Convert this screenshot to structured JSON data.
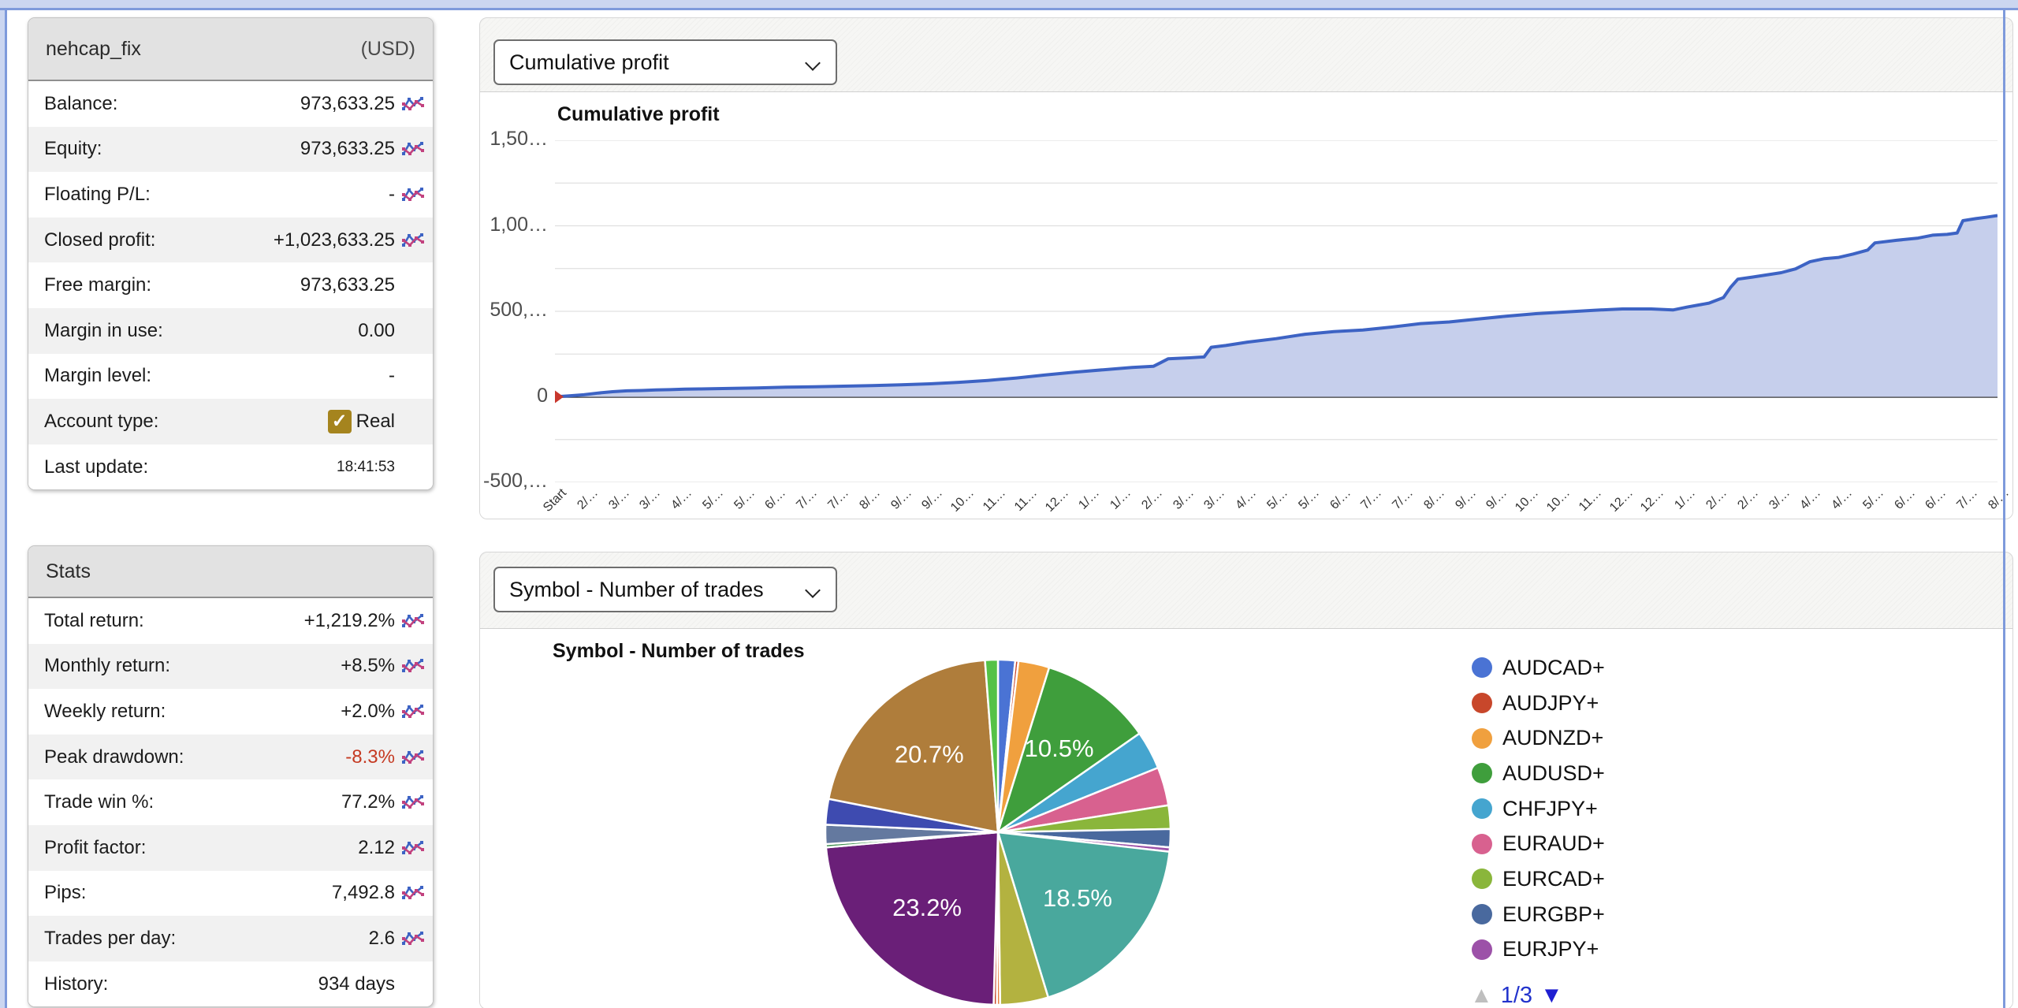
{
  "account_panel": {
    "title": "nehcap_fix",
    "currency": "(USD)",
    "rows": [
      {
        "label": "Balance:",
        "value": "973,633.25",
        "icon": true
      },
      {
        "label": "Equity:",
        "value": "973,633.25",
        "icon": true
      },
      {
        "label": "Floating P/L:",
        "value": "-",
        "icon": true
      },
      {
        "label": "Closed profit:",
        "value": "+1,023,633.25",
        "icon": true
      },
      {
        "label": "Free margin:",
        "value": "973,633.25",
        "icon": false
      },
      {
        "label": "Margin in use:",
        "value": "0.00",
        "icon": false
      },
      {
        "label": "Margin level:",
        "value": "-",
        "icon": false
      },
      {
        "label": "Account type:",
        "value": "Real",
        "icon": false,
        "checkbox": true
      },
      {
        "label": "Last update:",
        "value": "18:41:53",
        "icon": false,
        "small": true
      }
    ]
  },
  "stats_panel": {
    "title": "Stats",
    "rows": [
      {
        "label": "Total return:",
        "value": "+1,219.2%",
        "icon": true
      },
      {
        "label": "Monthly return:",
        "value": "+8.5%",
        "icon": true
      },
      {
        "label": "Weekly return:",
        "value": "+2.0%",
        "icon": true
      },
      {
        "label": "Peak drawdown:",
        "value": "-8.3%",
        "icon": true,
        "negative": true
      },
      {
        "label": "Trade win %:",
        "value": "77.2%",
        "icon": true
      },
      {
        "label": "Profit factor:",
        "value": "2.12",
        "icon": true
      },
      {
        "label": "Pips:",
        "value": "7,492.8",
        "icon": true
      },
      {
        "label": "Trades per day:",
        "value": "2.6",
        "icon": true
      },
      {
        "label": "History:",
        "value": "934 days",
        "icon": false
      }
    ]
  },
  "profit_chart": {
    "dropdown_value": "Cumulative profit",
    "title": "Cumulative profit"
  },
  "pie_chart": {
    "dropdown_value": "Symbol - Number of trades",
    "title": "Symbol - Number of trades",
    "legend_page": "1/3"
  },
  "colors": {
    "line": "#3d63c4",
    "line_fill": "#c6cfec",
    "start_marker": "#c8372d",
    "grid": "#e0e0e0",
    "axis": "#3a3a3a",
    "negative_text": "#c53a22",
    "checkbox_gold": "#a5841e",
    "pager_next_blue": "#1f1fd1",
    "pager_prev_gray": "#bfbfbf"
  },
  "chart_data": [
    {
      "type": "area",
      "title": "Cumulative profit",
      "ylabel": "",
      "xlabel": "",
      "ylim": [
        -500000,
        1500000
      ],
      "grid_step": 250000,
      "y_ticks": [
        {
          "text": "1,50…",
          "value": 1500000
        },
        {
          "text": "1,00…",
          "value": 1000000
        },
        {
          "text": "500,…",
          "value": 500000
        },
        {
          "text": "0",
          "value": 0
        },
        {
          "text": "-500,…",
          "value": -500000
        }
      ],
      "x_tick_labels": [
        "Start",
        "2/…",
        "3/…",
        "3/…",
        "4/…",
        "5/…",
        "5/…",
        "6/…",
        "7/…",
        "7/…",
        "8/…",
        "9/…",
        "9/…",
        "10…",
        "11…",
        "11…",
        "12…",
        "1/…",
        "1/…",
        "2/…",
        "3/…",
        "3/…",
        "4/…",
        "5/…",
        "5/…",
        "6/…",
        "7/…",
        "7/…",
        "8/…",
        "9/…",
        "9/…",
        "10…",
        "10…",
        "11…",
        "12…",
        "12…",
        "1/…",
        "2/…",
        "2/…",
        "3/…",
        "4/…",
        "4/…",
        "5/…",
        "6/…",
        "6/…",
        "7/…",
        "8/…"
      ],
      "points": [
        [
          0,
          0
        ],
        [
          0.01,
          6000
        ],
        [
          0.02,
          12000
        ],
        [
          0.03,
          22000
        ],
        [
          0.04,
          30000
        ],
        [
          0.05,
          35000
        ],
        [
          0.06,
          37000
        ],
        [
          0.07,
          40000
        ],
        [
          0.08,
          42000
        ],
        [
          0.09,
          45000
        ],
        [
          0.1,
          46000
        ],
        [
          0.12,
          49000
        ],
        [
          0.14,
          52000
        ],
        [
          0.16,
          56000
        ],
        [
          0.18,
          59000
        ],
        [
          0.2,
          62000
        ],
        [
          0.22,
          66000
        ],
        [
          0.24,
          70000
        ],
        [
          0.26,
          76000
        ],
        [
          0.28,
          85000
        ],
        [
          0.3,
          96000
        ],
        [
          0.32,
          110000
        ],
        [
          0.34,
          128000
        ],
        [
          0.36,
          144000
        ],
        [
          0.38,
          158000
        ],
        [
          0.4,
          172000
        ],
        [
          0.415,
          179000
        ],
        [
          0.42,
          200000
        ],
        [
          0.425,
          222000
        ],
        [
          0.44,
          228000
        ],
        [
          0.45,
          233000
        ],
        [
          0.455,
          290000
        ],
        [
          0.465,
          300000
        ],
        [
          0.48,
          320000
        ],
        [
          0.5,
          340000
        ],
        [
          0.52,
          366000
        ],
        [
          0.54,
          381000
        ],
        [
          0.56,
          391000
        ],
        [
          0.58,
          408000
        ],
        [
          0.6,
          428000
        ],
        [
          0.62,
          438000
        ],
        [
          0.64,
          455000
        ],
        [
          0.66,
          472000
        ],
        [
          0.68,
          486000
        ],
        [
          0.7,
          496000
        ],
        [
          0.72,
          506000
        ],
        [
          0.74,
          514000
        ],
        [
          0.76,
          514000
        ],
        [
          0.775,
          508000
        ],
        [
          0.785,
          525000
        ],
        [
          0.8,
          548000
        ],
        [
          0.81,
          580000
        ],
        [
          0.815,
          640000
        ],
        [
          0.82,
          688000
        ],
        [
          0.83,
          700000
        ],
        [
          0.85,
          726000
        ],
        [
          0.86,
          748000
        ],
        [
          0.87,
          790000
        ],
        [
          0.88,
          808000
        ],
        [
          0.89,
          815000
        ],
        [
          0.9,
          835000
        ],
        [
          0.91,
          858000
        ],
        [
          0.915,
          900000
        ],
        [
          0.93,
          915000
        ],
        [
          0.945,
          928000
        ],
        [
          0.955,
          945000
        ],
        [
          0.965,
          950000
        ],
        [
          0.972,
          958000
        ],
        [
          0.976,
          1030000
        ],
        [
          0.985,
          1042000
        ],
        [
          0.992,
          1050000
        ],
        [
          1,
          1060000
        ]
      ]
    },
    {
      "type": "pie",
      "title": "Symbol - Number of trades",
      "legend_position": "right",
      "legend_page": "1/3",
      "legend_visible_entries": [
        "AUDCAD+",
        "AUDJPY+",
        "AUDNZD+",
        "AUDUSD+",
        "CHFJPY+",
        "EURAUD+",
        "EURCAD+",
        "EURGBP+",
        "EURJPY+"
      ],
      "slices": [
        {
          "label": "AUDCAD+",
          "pct": 1.6,
          "color": "#4a73d4",
          "data_label": null
        },
        {
          "label": "AUDJPY+",
          "pct": 0.3,
          "color": "#c8472b",
          "data_label": null
        },
        {
          "label": "AUDNZD+",
          "pct": 2.9,
          "color": "#f0a03e",
          "data_label": null
        },
        {
          "label": "AUDUSD+",
          "pct": 10.5,
          "color": "#3f9e3c",
          "data_label": "10.5%"
        },
        {
          "label": "CHFJPY+",
          "pct": 3.6,
          "color": "#45a5cf",
          "data_label": null
        },
        {
          "label": "EURAUD+",
          "pct": 3.6,
          "color": "#d8618f",
          "data_label": null
        },
        {
          "label": "EURCAD+",
          "pct": 2.2,
          "color": "#8ab63b",
          "data_label": null
        },
        {
          "label": "EURGBP+",
          "pct": 1.7,
          "color": "#49699e",
          "data_label": null
        },
        {
          "label": "EURJPY+",
          "pct": 0.4,
          "color": "#9c51a8",
          "data_label": null
        },
        {
          "label": null,
          "pct": 18.5,
          "color": "#49a89d",
          "data_label": "18.5%"
        },
        {
          "label": null,
          "pct": 4.5,
          "color": "#b3b240",
          "data_label": null
        },
        {
          "label": null,
          "pct": 0.3,
          "color": "#e8803c",
          "data_label": null
        },
        {
          "label": null,
          "pct": 0.3,
          "color": "#c8472b",
          "data_label": null
        },
        {
          "label": null,
          "pct": 23.2,
          "color": "#6a1f78",
          "data_label": "23.2%"
        },
        {
          "label": null,
          "pct": 0.3,
          "color": "#3e8f4e",
          "data_label": null
        },
        {
          "label": null,
          "pct": 1.8,
          "color": "#64799f",
          "data_label": null
        },
        {
          "label": null,
          "pct": 2.4,
          "color": "#3e4bb0",
          "data_label": null
        },
        {
          "label": null,
          "pct": 20.7,
          "color": "#af7d3b",
          "data_label": "20.7%"
        },
        {
          "label": null,
          "pct": 1.2,
          "color": "#55c247",
          "data_label": null
        }
      ]
    }
  ]
}
